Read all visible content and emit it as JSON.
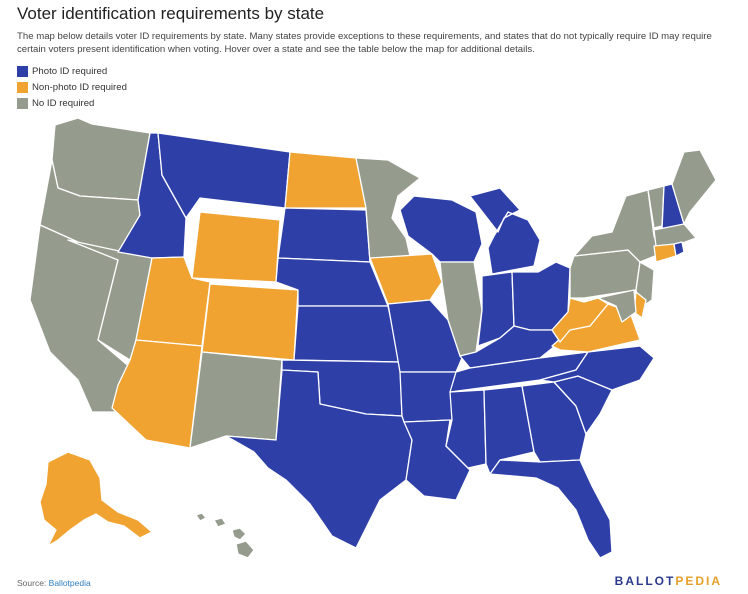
{
  "title": "Voter identification requirements by state",
  "description": "The map below details voter ID requirements by state. Many states provide exceptions to these requirements, and states that do not typically require ID may require certain voters present identification when voting. Hover over a state and see the table below the map for additional details.",
  "legend": [
    {
      "label": "Photo ID required",
      "color": "#2e3fa8"
    },
    {
      "label": "Non-photo ID required",
      "color": "#f0a331"
    },
    {
      "label": "No ID required",
      "color": "#959b8d"
    }
  ],
  "source_prefix": "Source: ",
  "source_link": "Ballotpedia",
  "brand_part1": "BALLOT",
  "brand_part2": "PEDIA",
  "states": {
    "photo": [
      "ID",
      "MT",
      "SD",
      "NE",
      "KS",
      "MO",
      "WI",
      "MI",
      "IN",
      "OH",
      "KY",
      "TN",
      "AR",
      "OK",
      "TX",
      "LA",
      "MS",
      "AL",
      "GA",
      "FL",
      "SC",
      "NC",
      "NH",
      "RI"
    ],
    "nonphoto": [
      "ND",
      "WY",
      "UT",
      "CO",
      "AZ",
      "IA",
      "WV",
      "VA",
      "CT",
      "DE",
      "AK"
    ],
    "none": [
      "WA",
      "OR",
      "CA",
      "NV",
      "NM",
      "MN",
      "IL",
      "PA",
      "NY",
      "VT",
      "ME",
      "MA",
      "NJ",
      "MD",
      "HI"
    ]
  }
}
